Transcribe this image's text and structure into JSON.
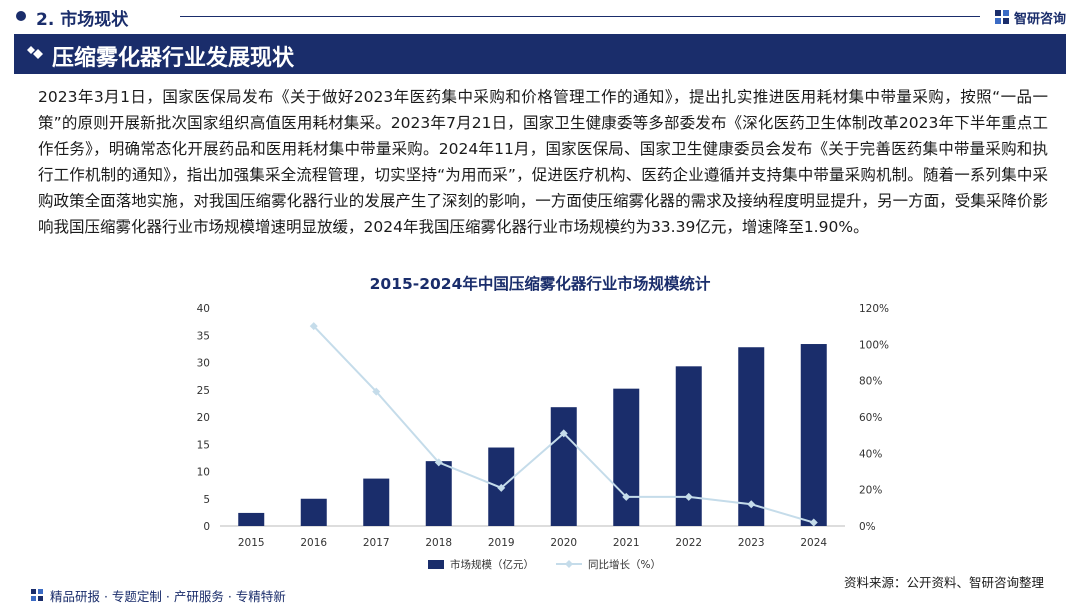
{
  "header": {
    "section_label": "2. 市场现状",
    "brand_name": "智研咨询"
  },
  "title": "压缩雾化器行业发展现状",
  "paragraph": "2023年3月1日，国家医保局发布《关于做好2023年医药集中采购和价格管理工作的通知》，提出扎实推进医用耗材集中带量采购，按照“一品一策”的原则开展新批次国家组织高值医用耗材集采。2023年7月21日，国家卫生健康委等多部委发布《深化医药卫生体制改革2023年下半年重点工作任务》，明确常态化开展药品和医用耗材集中带量采购。2024年11月，国家医保局、国家卫生健康委员会发布《关于完善医药集中带量采购和执行工作机制的通知》，指出加强集采全流程管理，切实坚持“为用而采”，促进医疗机构、医药企业遵循并支持集中带量采购机制。随着一系列集中采购政策全面落地实施，对我国压缩雾化器行业的发展产生了深刻的影响，一方面使压缩雾化器的需求及接纳程度明显提升，另一方面，受集采降价影响我国压缩雾化器行业市场规模增速明显放缓，2024年我国压缩雾化器行业市场规模约为33.39亿元，增速降至1.90%。",
  "chart_data": {
    "type": "bar",
    "title": "2015-2024年中国压缩雾化器行业市场规模统计",
    "categories": [
      "2015",
      "2016",
      "2017",
      "2018",
      "2019",
      "2020",
      "2021",
      "2022",
      "2023",
      "2024"
    ],
    "series": [
      {
        "name": "市场规模（亿元）",
        "type": "bar",
        "axis": "left",
        "values": [
          2.4,
          5.0,
          8.7,
          11.9,
          14.4,
          21.8,
          25.2,
          29.3,
          32.8,
          33.39
        ]
      },
      {
        "name": "同比增长（%）",
        "type": "line",
        "axis": "right",
        "values": [
          null,
          110,
          74,
          35,
          21,
          51,
          16,
          16,
          12,
          1.9
        ]
      }
    ],
    "y_left": {
      "min": 0,
      "max": 40,
      "ticks": [
        0,
        5,
        10,
        15,
        20,
        25,
        30,
        35,
        40
      ]
    },
    "y_right": {
      "min": 0,
      "max": 120,
      "ticks": [
        "0%",
        "20%",
        "40%",
        "60%",
        "80%",
        "100%",
        "120%"
      ]
    },
    "legend": "bottom-center",
    "colors": {
      "bar": "#1a2d6b",
      "line": "#c5dcea",
      "axis": "#bbbbbb",
      "text": "#333333"
    }
  },
  "source": "资料来源：公开资料、智研咨询整理",
  "footer": "精品研报 · 专题定制 · 产研服务 · 专精特新"
}
